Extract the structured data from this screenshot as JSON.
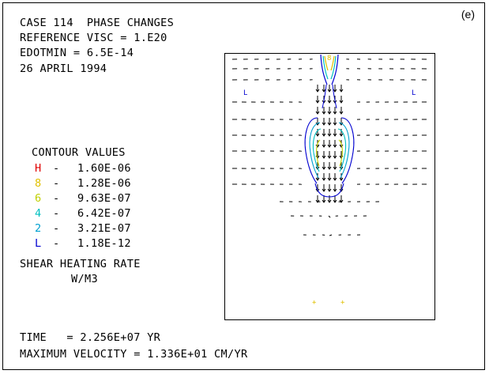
{
  "header": {
    "line1": "CASE 114  PHASE CHANGES",
    "line2": "REFERENCE VISC = 1.E20",
    "line3": "EDOTMIN = 6.5E-14",
    "line4": "26 APRIL 1994"
  },
  "panel_label": "(e)",
  "contours": {
    "title": "CONTOUR VALUES",
    "levels": [
      {
        "label": "H",
        "value": "1.60E-06",
        "color": "#e00000"
      },
      {
        "label": "8",
        "value": "1.28E-06",
        "color": "#e0c000"
      },
      {
        "label": "6",
        "value": "9.63E-07",
        "color": "#c0d000"
      },
      {
        "label": "4",
        "value": "6.42E-07",
        "color": "#00c0c0"
      },
      {
        "label": "2",
        "value": "3.21E-07",
        "color": "#00a0d0"
      },
      {
        "label": "L",
        "value": "1.18E-12",
        "color": "#0000d0"
      }
    ],
    "dash": "-"
  },
  "quantity": {
    "line1": "SHEAR HEATING RATE",
    "line2": "W/M3"
  },
  "footer": {
    "time": "TIME   = 2.256E+07 YR",
    "max_velocity": "MAXIMUM VELOCITY = 1.336E+01 CM/YR"
  },
  "plot_markers": {
    "low_left": "L",
    "low_right": "L",
    "top_center": "8",
    "bottom_left": "+",
    "bottom_right": "+"
  }
}
